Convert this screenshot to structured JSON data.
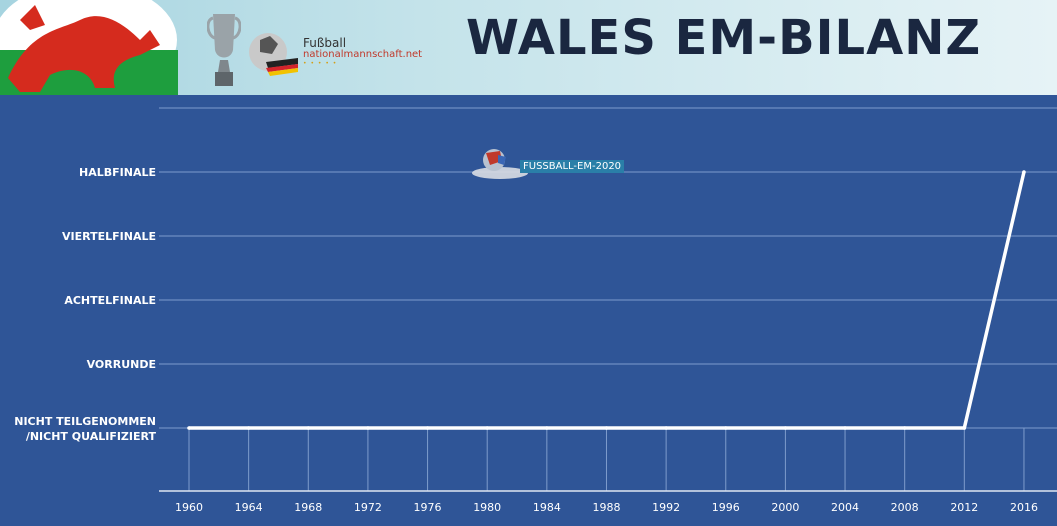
{
  "header": {
    "title": "WALES EM-BILANZ",
    "brand_line1": "Fußball",
    "brand_line2": "nationalmannschaft.net",
    "brand_line3": "• • • • •",
    "watermark": "FUSSBALL-EM-2020"
  },
  "chart_data": {
    "type": "line",
    "title": "WALES EM-BILANZ",
    "xlabel": "",
    "ylabel": "",
    "categories": [
      "1960",
      "1964",
      "1968",
      "1972",
      "1976",
      "1980",
      "1984",
      "1988",
      "1992",
      "1996",
      "2000",
      "2004",
      "2008",
      "2012",
      "2016"
    ],
    "y_levels": [
      "Nicht teilgenommen /nicht qualifiziert",
      "Vorrunde",
      "Achtelfinale",
      "Viertelfinale",
      "Halbfinale"
    ],
    "y_level_lines": [
      [
        "NICHT TEILGENOMMEN",
        "/NICHT QUALIFIZIERT"
      ],
      [
        "VORRUNDE"
      ],
      [
        "ACHTELFINALE"
      ],
      [
        "VIERTELFINALE"
      ],
      [
        "HALBFINALE"
      ]
    ],
    "values": [
      0,
      0,
      0,
      0,
      0,
      0,
      0,
      0,
      0,
      0,
      0,
      0,
      0,
      0,
      4
    ],
    "ylim": [
      0,
      5
    ],
    "grid": true,
    "colors": {
      "background": "#2f5597",
      "line": "#ffffff",
      "grid": "#7e9ccc"
    }
  }
}
